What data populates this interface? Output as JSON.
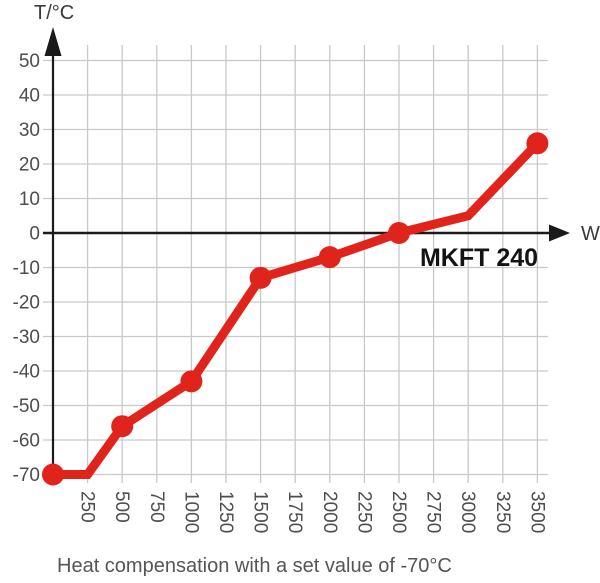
{
  "chart_data": {
    "type": "line",
    "title": "",
    "xlabel": "W",
    "ylabel": "T/°C",
    "annotation": "MKFT 240",
    "caption": "Heat compensation with a set value of -70°C",
    "x_ticks": [
      250,
      500,
      750,
      1000,
      1250,
      1500,
      1750,
      2000,
      2250,
      2500,
      2750,
      3000,
      3250,
      3500
    ],
    "y_ticks": [
      50,
      40,
      30,
      20,
      10,
      0,
      -10,
      -20,
      -30,
      -40,
      -50,
      -60,
      -70
    ],
    "xlim": [
      0,
      3600
    ],
    "ylim": [
      -75,
      55
    ],
    "grid": true,
    "legend": "none",
    "line_color": "#e0241c",
    "grid_color": "#c9c9c9",
    "axis_color": "#1a1a1a",
    "tick_label_color": "#4d4d4d",
    "series": [
      {
        "name": "MKFT 240",
        "points": [
          {
            "x": 0,
            "t": -70,
            "marker": true
          },
          {
            "x": 250,
            "t": -70,
            "marker": false
          },
          {
            "x": 500,
            "t": -56,
            "marker": true
          },
          {
            "x": 1000,
            "t": -43,
            "marker": true
          },
          {
            "x": 1500,
            "t": -13,
            "marker": true
          },
          {
            "x": 2000,
            "t": -7,
            "marker": true
          },
          {
            "x": 2500,
            "t": 0,
            "marker": true
          },
          {
            "x": 3000,
            "t": 5,
            "marker": false
          },
          {
            "x": 3500,
            "t": 26,
            "marker": true
          }
        ]
      }
    ]
  }
}
